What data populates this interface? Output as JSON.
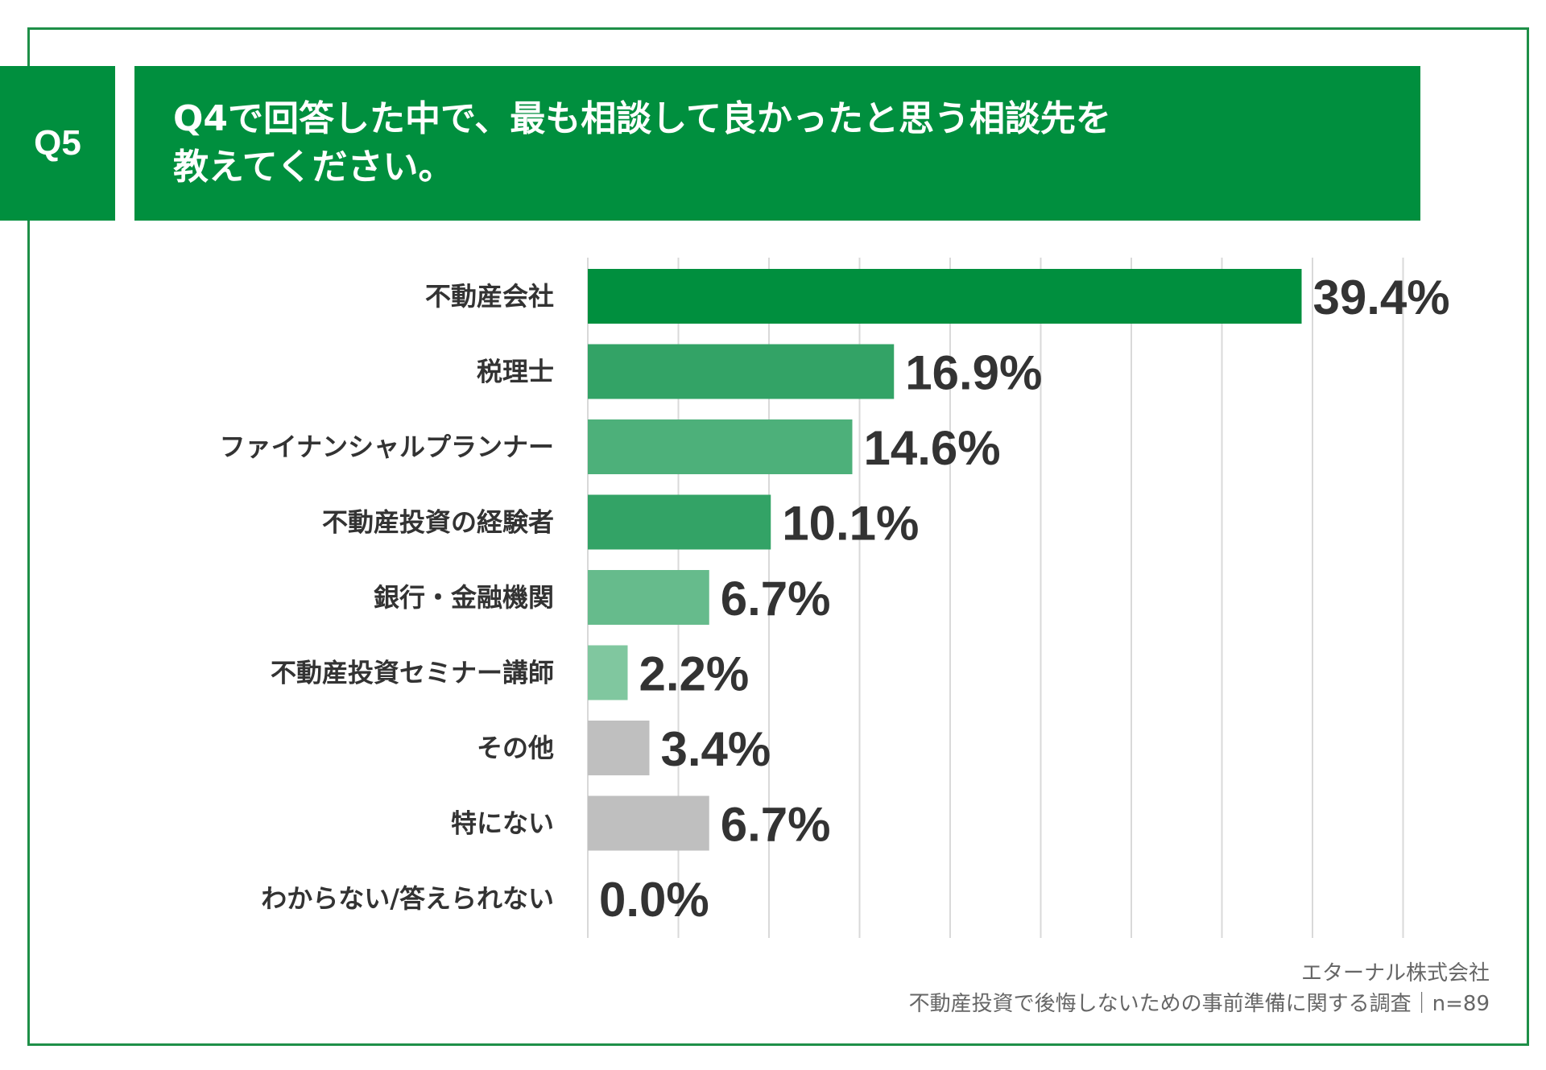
{
  "question": {
    "badge": "Q5",
    "title_line1": "Q4で回答した中で、最も相談して良かったと思う相談先を",
    "title_line2": "教えてください。"
  },
  "chart_data": {
    "type": "bar",
    "orientation": "horizontal",
    "categories": [
      "不動産会社",
      "税理士",
      "ファイナンシャルプランナー",
      "不動産投資の経験者",
      "銀行・金融機関",
      "不動産投資セミナー講師",
      "その他",
      "特にない",
      "わからない/答えられない"
    ],
    "values": [
      39.4,
      16.9,
      14.6,
      10.1,
      6.7,
      2.2,
      3.4,
      6.7,
      0.0
    ],
    "value_labels": [
      "39.4%",
      "16.9%",
      "14.6%",
      "10.1%",
      "6.7%",
      "2.2%",
      "3.4%",
      "6.7%",
      "0.0%"
    ],
    "colors": [
      "#008f3e",
      "#33a366",
      "#4db07a",
      "#33a366",
      "#66bb8c",
      "#80c79f",
      "#bfbfbf",
      "#bfbfbf",
      "#bfbfbf"
    ],
    "xlim": [
      0,
      45
    ],
    "grid_step": 5,
    "grid": true,
    "gridline_color": "#d9d9d9"
  },
  "source": {
    "company": "エターナル株式会社",
    "survey": "不動産投資で後悔しないための事前準備に関する調査｜n=89"
  },
  "colors": {
    "brand_green": "#008f3e",
    "frame_green": "#1e8f48"
  }
}
